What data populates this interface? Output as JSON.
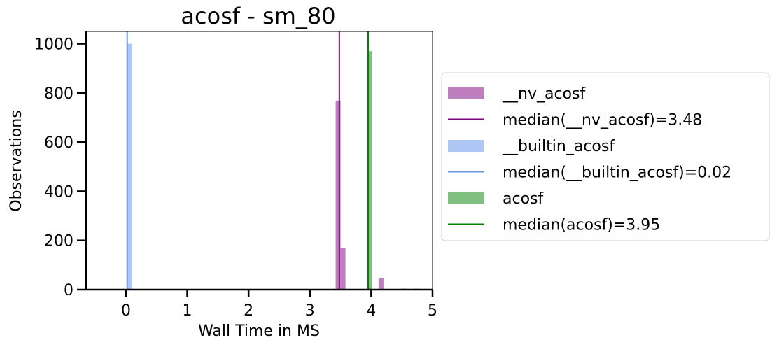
{
  "chart_data": {
    "type": "histogram",
    "title": "acosf - sm_80",
    "xlabel": "Wall Time in MS",
    "ylabel": "Observations",
    "xlim": [
      -0.65,
      5.0
    ],
    "ylim": [
      0,
      1050
    ],
    "xticks": [
      0,
      1,
      2,
      3,
      4,
      5
    ],
    "yticks": [
      0,
      200,
      400,
      600,
      800,
      1000
    ],
    "grid": false,
    "legend_position": "outside-right",
    "series": [
      {
        "name": "__nv_acosf",
        "color": "#BF7FBF",
        "bins": [
          {
            "x0": 3.42,
            "x1": 3.5,
            "count": 769
          },
          {
            "x0": 3.5,
            "x1": 3.58,
            "count": 170
          },
          {
            "x0": 4.12,
            "x1": 4.2,
            "count": 48
          },
          {
            "x0": 4.5,
            "x1": 4.58,
            "count": 4
          },
          {
            "x0": 4.7,
            "x1": 4.78,
            "count": 4
          }
        ],
        "median": 3.48,
        "median_label": "median(__nv_acosf)=3.48",
        "median_color": "#800080"
      },
      {
        "name": "__builtin_acosf",
        "color": "#AEC7F4",
        "bins": [
          {
            "x0": 0.02,
            "x1": 0.1,
            "count": 1000
          }
        ],
        "median": 0.02,
        "median_label": "median(__builtin_acosf)=0.02",
        "median_color": "#6495ED"
      },
      {
        "name": "acosf",
        "color": "#7FBF7F",
        "bins": [
          {
            "x0": 3.93,
            "x1": 4.01,
            "count": 970
          }
        ],
        "median": 3.95,
        "median_label": "median(acosf)=3.95",
        "median_color": "#008000"
      }
    ]
  }
}
